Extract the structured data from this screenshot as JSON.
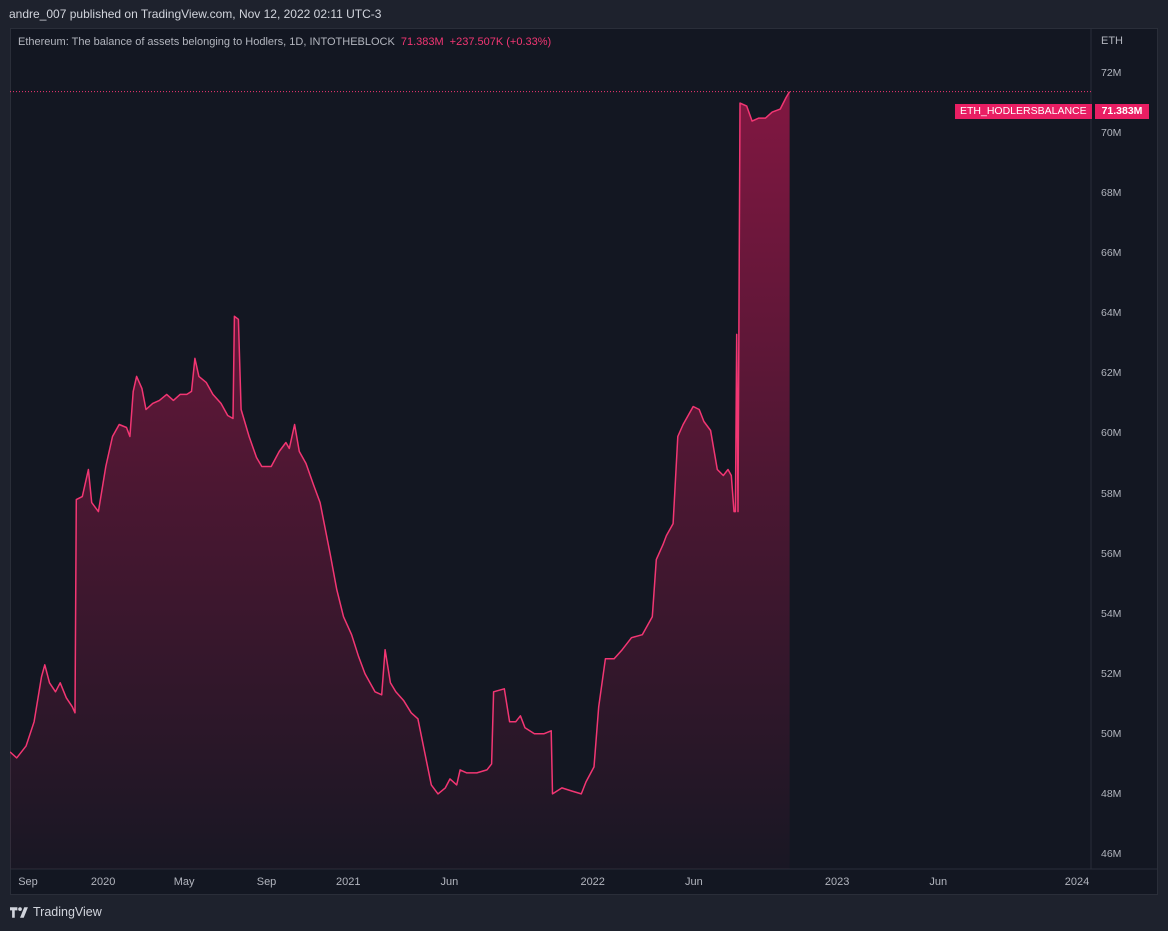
{
  "header": {
    "publisher_text": "andre_007 published on TradingView.com, Nov 12, 2022 02:11 UTC-3"
  },
  "legend": {
    "title": "Ethereum: The balance of assets belonging to Hodlers, 1D, INTOTHEBLOCK",
    "last_value": "71.383M",
    "change": "+237.507K (+0.33%)"
  },
  "price_scale": {
    "currency": "ETH",
    "last_value_label": "71.383M"
  },
  "series_tag": "ETH_HODLERSBALANCE",
  "footer": {
    "logo_text": "TradingView"
  },
  "colors": {
    "line": "#f23673",
    "tag": "#e91e63",
    "background": "#131722"
  },
  "chart_data": {
    "type": "area",
    "title": "Ethereum: The balance of assets belonging to Hodlers, 1D, INTOTHEBLOCK",
    "xlabel": "",
    "ylabel": "",
    "y_unit": "M",
    "ylim": [
      45.5,
      73.5
    ],
    "xlim": [
      "2019-08-15",
      "2024-01-15"
    ],
    "y_ticks": [
      46,
      48,
      50,
      52,
      54,
      56,
      58,
      60,
      62,
      64,
      66,
      68,
      70,
      72
    ],
    "y_tick_labels": [
      "46M",
      "48M",
      "50M",
      "52M",
      "54M",
      "56M",
      "58M",
      "60M",
      "62M",
      "64M",
      "66M",
      "68M",
      "70M",
      "72M"
    ],
    "x_ticks": [
      {
        "date": "2019-09-01",
        "label": "Sep"
      },
      {
        "date": "2020-01-01",
        "label": "2020"
      },
      {
        "date": "2020-05-01",
        "label": "May"
      },
      {
        "date": "2020-09-01",
        "label": "Sep"
      },
      {
        "date": "2021-01-01",
        "label": "2021"
      },
      {
        "date": "2021-06-01",
        "label": "Jun"
      },
      {
        "date": "2022-01-01",
        "label": "2022"
      },
      {
        "date": "2022-06-01",
        "label": "Jun"
      },
      {
        "date": "2023-01-01",
        "label": "2023"
      },
      {
        "date": "2023-06-01",
        "label": "Jun"
      },
      {
        "date": "2024-01-01",
        "label": "2024"
      }
    ],
    "grid": false,
    "series": [
      {
        "name": "ETH_HODLERSBALANCE",
        "points": [
          [
            "2019-08-15",
            49.4
          ],
          [
            "2019-08-25",
            49.2
          ],
          [
            "2019-09-08",
            49.6
          ],
          [
            "2019-09-20",
            50.4
          ],
          [
            "2019-10-01",
            51.9
          ],
          [
            "2019-10-06",
            52.3
          ],
          [
            "2019-10-13",
            51.7
          ],
          [
            "2019-10-22",
            51.4
          ],
          [
            "2019-10-29",
            51.7
          ],
          [
            "2019-11-07",
            51.2
          ],
          [
            "2019-11-16",
            50.9
          ],
          [
            "2019-11-20",
            50.7
          ],
          [
            "2019-11-22",
            57.8
          ],
          [
            "2019-12-01",
            57.9
          ],
          [
            "2019-12-10",
            58.8
          ],
          [
            "2019-12-15",
            57.7
          ],
          [
            "2019-12-25",
            57.4
          ],
          [
            "2020-01-05",
            58.9
          ],
          [
            "2020-01-15",
            59.9
          ],
          [
            "2020-01-25",
            60.3
          ],
          [
            "2020-02-05",
            60.2
          ],
          [
            "2020-02-10",
            59.9
          ],
          [
            "2020-02-15",
            61.4
          ],
          [
            "2020-02-20",
            61.9
          ],
          [
            "2020-02-28",
            61.5
          ],
          [
            "2020-03-05",
            60.8
          ],
          [
            "2020-03-15",
            61.0
          ],
          [
            "2020-03-25",
            61.1
          ],
          [
            "2020-04-05",
            61.3
          ],
          [
            "2020-04-15",
            61.1
          ],
          [
            "2020-04-25",
            61.3
          ],
          [
            "2020-05-05",
            61.3
          ],
          [
            "2020-05-12",
            61.4
          ],
          [
            "2020-05-17",
            62.5
          ],
          [
            "2020-05-23",
            61.9
          ],
          [
            "2020-06-03",
            61.7
          ],
          [
            "2020-06-13",
            61.3
          ],
          [
            "2020-06-25",
            61.0
          ],
          [
            "2020-07-05",
            60.6
          ],
          [
            "2020-07-13",
            60.5
          ],
          [
            "2020-07-15",
            63.9
          ],
          [
            "2020-07-21",
            63.8
          ],
          [
            "2020-07-25",
            60.8
          ],
          [
            "2020-08-06",
            59.9
          ],
          [
            "2020-08-17",
            59.2
          ],
          [
            "2020-08-25",
            58.9
          ],
          [
            "2020-09-08",
            58.9
          ],
          [
            "2020-09-20",
            59.4
          ],
          [
            "2020-09-30",
            59.7
          ],
          [
            "2020-10-05",
            59.5
          ],
          [
            "2020-10-13",
            60.3
          ],
          [
            "2020-10-20",
            59.4
          ],
          [
            "2020-10-30",
            59.0
          ],
          [
            "2020-11-10",
            58.3
          ],
          [
            "2020-11-20",
            57.7
          ],
          [
            "2020-12-05",
            56.0
          ],
          [
            "2020-12-15",
            54.8
          ],
          [
            "2020-12-25",
            53.9
          ],
          [
            "2021-01-06",
            53.3
          ],
          [
            "2021-01-16",
            52.6
          ],
          [
            "2021-01-26",
            52.0
          ],
          [
            "2021-02-10",
            51.4
          ],
          [
            "2021-02-20",
            51.3
          ],
          [
            "2021-02-25",
            52.8
          ],
          [
            "2021-03-05",
            51.7
          ],
          [
            "2021-03-13",
            51.4
          ],
          [
            "2021-03-25",
            51.1
          ],
          [
            "2021-04-05",
            50.7
          ],
          [
            "2021-04-15",
            50.5
          ],
          [
            "2021-04-25",
            49.4
          ],
          [
            "2021-05-05",
            48.3
          ],
          [
            "2021-05-15",
            48.0
          ],
          [
            "2021-05-26",
            48.2
          ],
          [
            "2021-06-02",
            48.5
          ],
          [
            "2021-06-12",
            48.3
          ],
          [
            "2021-06-17",
            48.8
          ],
          [
            "2021-06-27",
            48.7
          ],
          [
            "2021-07-12",
            48.7
          ],
          [
            "2021-07-27",
            48.8
          ],
          [
            "2021-08-03",
            49.0
          ],
          [
            "2021-08-06",
            51.4
          ],
          [
            "2021-08-22",
            51.5
          ],
          [
            "2021-08-30",
            50.4
          ],
          [
            "2021-09-08",
            50.4
          ],
          [
            "2021-09-15",
            50.6
          ],
          [
            "2021-09-22",
            50.2
          ],
          [
            "2021-10-06",
            50.0
          ],
          [
            "2021-10-20",
            50.0
          ],
          [
            "2021-10-31",
            50.1
          ],
          [
            "2021-11-02",
            48.0
          ],
          [
            "2021-11-16",
            48.2
          ],
          [
            "2021-11-30",
            48.1
          ],
          [
            "2021-12-15",
            48.0
          ],
          [
            "2021-12-22",
            48.4
          ],
          [
            "2022-01-03",
            48.9
          ],
          [
            "2022-01-10",
            50.9
          ],
          [
            "2022-01-20",
            52.5
          ],
          [
            "2022-02-02",
            52.5
          ],
          [
            "2022-02-14",
            52.8
          ],
          [
            "2022-02-28",
            53.2
          ],
          [
            "2022-03-16",
            53.3
          ],
          [
            "2022-03-31",
            53.9
          ],
          [
            "2022-04-06",
            55.8
          ],
          [
            "2022-04-16",
            56.3
          ],
          [
            "2022-04-21",
            56.6
          ],
          [
            "2022-05-01",
            57.0
          ],
          [
            "2022-05-08",
            59.9
          ],
          [
            "2022-05-16",
            60.3
          ],
          [
            "2022-05-31",
            60.9
          ],
          [
            "2022-06-09",
            60.8
          ],
          [
            "2022-06-16",
            60.4
          ],
          [
            "2022-06-26",
            60.1
          ],
          [
            "2022-07-06",
            58.8
          ],
          [
            "2022-07-15",
            58.6
          ],
          [
            "2022-07-22",
            58.8
          ],
          [
            "2022-07-27",
            58.6
          ],
          [
            "2022-07-31",
            57.4
          ],
          [
            "2022-08-02",
            57.4
          ],
          [
            "2022-08-04",
            63.3
          ],
          [
            "2022-08-06",
            57.4
          ],
          [
            "2022-08-09",
            71.0
          ],
          [
            "2022-08-19",
            70.9
          ],
          [
            "2022-08-27",
            70.4
          ],
          [
            "2022-09-06",
            70.5
          ],
          [
            "2022-09-16",
            70.5
          ],
          [
            "2022-09-26",
            70.7
          ],
          [
            "2022-10-08",
            70.8
          ],
          [
            "2022-10-17",
            71.2
          ],
          [
            "2022-10-22",
            71.383
          ]
        ]
      }
    ]
  }
}
